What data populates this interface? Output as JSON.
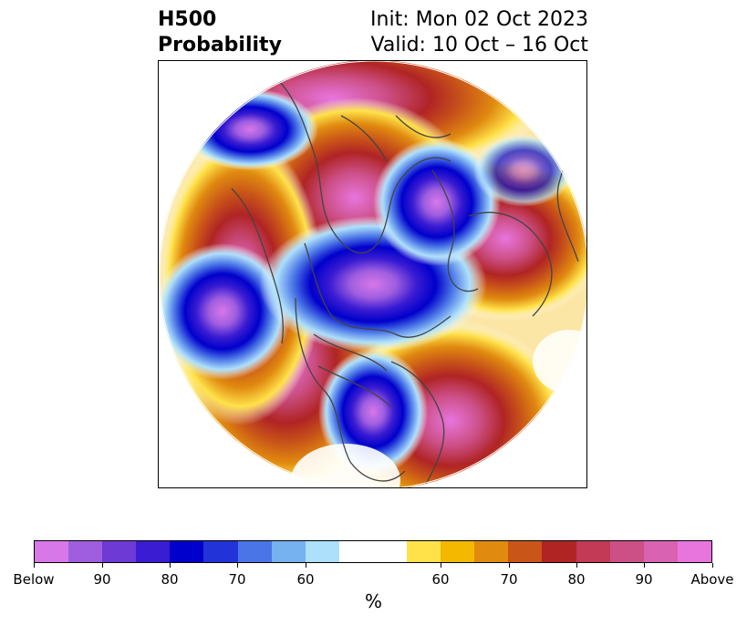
{
  "title": {
    "line1_left": "H500",
    "line2_left": "Probability",
    "line1_right": "Init: Mon 02 Oct 2023",
    "line2_right": "Valid: 10 Oct – 16 Oct"
  },
  "colorbar": {
    "colors": [
      "#d878e8",
      "#9f5ee0",
      "#6d3ad6",
      "#3a1cd2",
      "#0000cc",
      "#2234d8",
      "#4a75e6",
      "#76b1f0",
      "#ade0fb",
      "#ffffff",
      "#ffffff",
      "#ffe24a",
      "#f4b800",
      "#e08a10",
      "#c95518",
      "#b02424",
      "#c23a55",
      "#cc4f86",
      "#da62b2",
      "#e875de"
    ],
    "tick_labels": [
      "Below",
      "90",
      "80",
      "70",
      "60",
      "60",
      "70",
      "80",
      "90",
      "Above"
    ],
    "unit": "%"
  },
  "map": {
    "projection": "polar-stereographic-north",
    "below_color": "#0000cc",
    "above_color": "#b02424",
    "coastline_color": "#444444"
  }
}
